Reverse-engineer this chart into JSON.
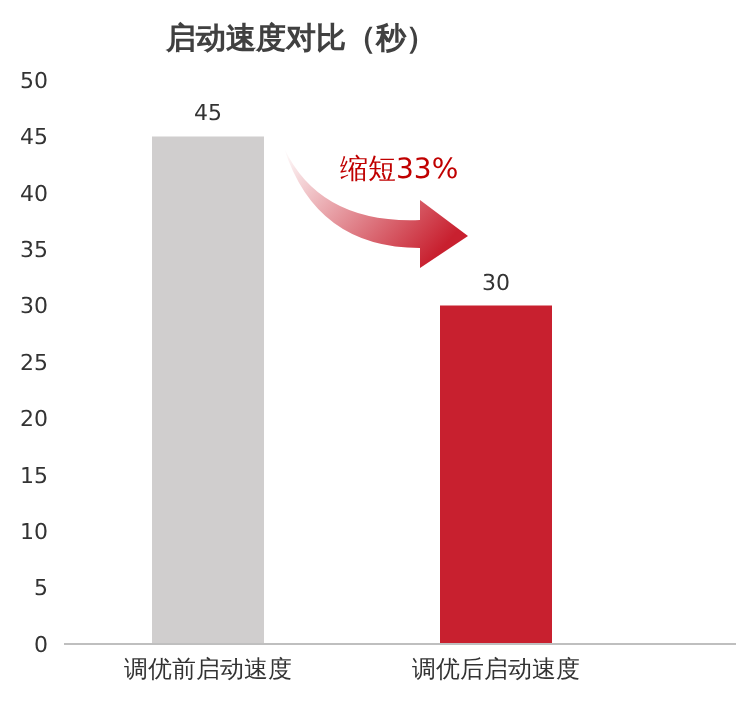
{
  "chart_data": {
    "type": "bar",
    "title": "启动速度对比（秒）",
    "categories": [
      "调优前启动速度",
      "调优后启动速度"
    ],
    "values": [
      45,
      30
    ],
    "colors": [
      "#d0cece",
      "#c8202f"
    ],
    "ylim": [
      0,
      50
    ],
    "yticks": [
      0,
      5,
      10,
      15,
      20,
      25,
      30,
      35,
      40,
      45,
      50
    ],
    "data_labels": true,
    "annotations": [
      "缩短33%"
    ]
  }
}
